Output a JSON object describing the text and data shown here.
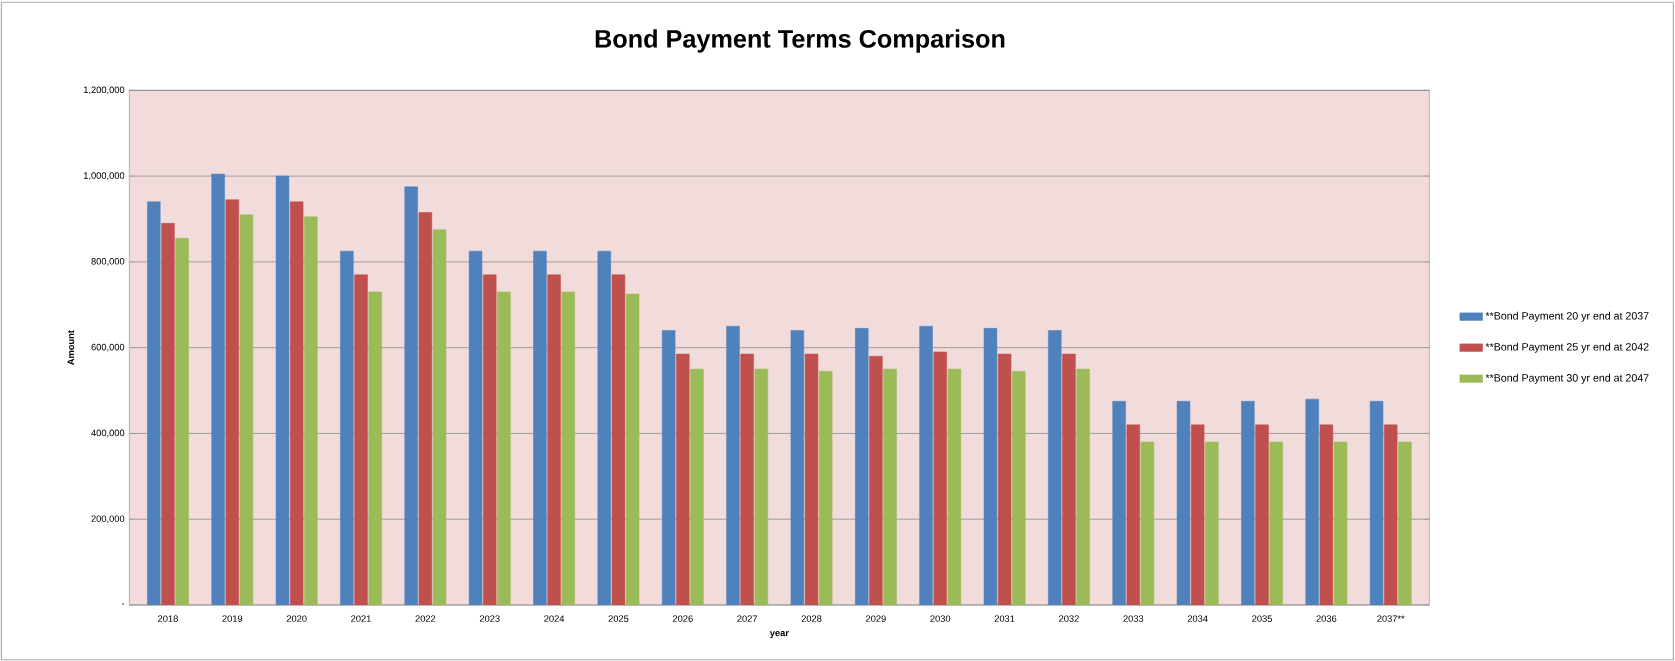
{
  "chart_data": {
    "type": "bar",
    "title": "Bond Payment Terms Comparison",
    "xlabel": "year",
    "ylabel": "Amount",
    "categories": [
      "2018",
      "2019",
      "2020",
      "2021",
      "2022",
      "2023",
      "2024",
      "2025",
      "2026",
      "2027",
      "2028",
      "2029",
      "2030",
      "2031",
      "2032",
      "2033",
      "2034",
      "2035",
      "2036",
      "2037**"
    ],
    "series": [
      {
        "name": "**Bond Payment 20 yr end at 2037",
        "color": "#4f81bd",
        "values": [
          940000,
          1005000,
          1000000,
          825000,
          975000,
          825000,
          825000,
          825000,
          640000,
          650000,
          640000,
          645000,
          650000,
          645000,
          640000,
          475000,
          475000,
          475000,
          480000,
          475000
        ]
      },
      {
        "name": "**Bond Payment 25 yr end at 2042",
        "color": "#c0504d",
        "values": [
          890000,
          945000,
          940000,
          770000,
          915000,
          770000,
          770000,
          770000,
          585000,
          585000,
          585000,
          580000,
          590000,
          585000,
          585000,
          420000,
          420000,
          420000,
          420000,
          420000
        ]
      },
      {
        "name": "**Bond Payment 30 yr end at 2047",
        "color": "#9bbb59",
        "values": [
          855000,
          910000,
          905000,
          730000,
          875000,
          730000,
          730000,
          725000,
          550000,
          550000,
          545000,
          550000,
          550000,
          545000,
          550000,
          380000,
          380000,
          380000,
          380000,
          380000
        ]
      }
    ],
    "ylim": [
      0,
      1200000
    ],
    "yticks": [
      {
        "value": 0,
        "label": "-"
      },
      {
        "value": 200000,
        "label": "200,000"
      },
      {
        "value": 400000,
        "label": "400,000"
      },
      {
        "value": 600000,
        "label": "600,000"
      },
      {
        "value": 800000,
        "label": "800,000"
      },
      {
        "value": 1000000,
        "label": "1,000,000"
      },
      {
        "value": 1200000,
        "label": "1,200,000"
      }
    ],
    "grid": "y",
    "legend": "right"
  }
}
